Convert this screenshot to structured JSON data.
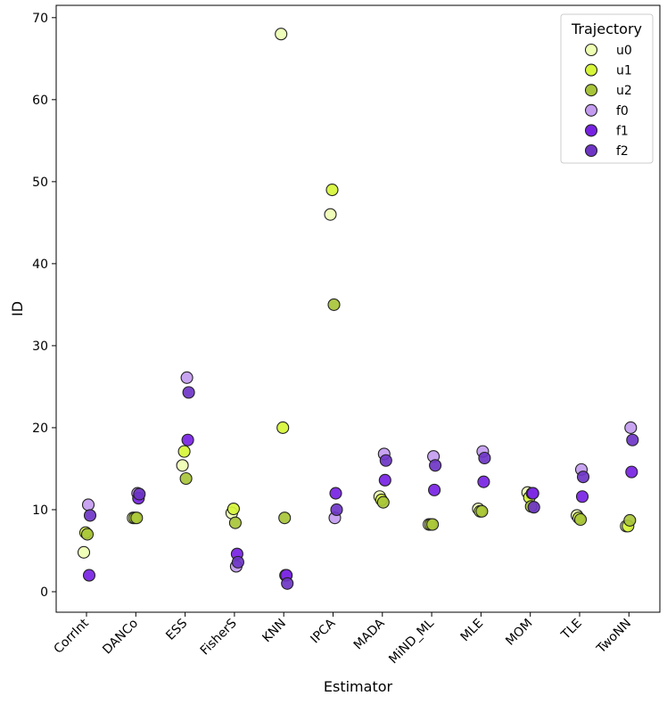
{
  "chart_data": {
    "type": "scatter",
    "xlabel": "Estimator",
    "ylabel": "ID",
    "categories": [
      "CorrInt",
      "DANCo",
      "ESS",
      "FisherS",
      "KNN",
      "IPCA",
      "MADA",
      "MiND_ML",
      "MLE",
      "MOM",
      "TLE",
      "TwoNN"
    ],
    "ylim": [
      -2.5,
      71.5
    ],
    "yticks": [
      0,
      10,
      20,
      30,
      40,
      50,
      60,
      70
    ],
    "grid": false,
    "legend": {
      "title": "Trajectory",
      "placement": "top-right"
    },
    "series": [
      {
        "name": "u0",
        "color": "#eeffb3",
        "points": [
          [
            0,
            4.8
          ],
          [
            1,
            9
          ],
          [
            2,
            15.4
          ],
          [
            3,
            9.6
          ],
          [
            4,
            68
          ],
          [
            5,
            46
          ],
          [
            6,
            11.6
          ],
          [
            7,
            8.2
          ],
          [
            8,
            10.1
          ],
          [
            9,
            12.1
          ],
          [
            10,
            9.3
          ],
          [
            11,
            8
          ]
        ]
      },
      {
        "name": "u1",
        "color": "#d6f53a",
        "points": [
          [
            0,
            7.2
          ],
          [
            1,
            9
          ],
          [
            2,
            17.1
          ],
          [
            3,
            10.1
          ],
          [
            4,
            20
          ],
          [
            5,
            49
          ],
          [
            6,
            11.2
          ],
          [
            7,
            8.2
          ],
          [
            8,
            9.8
          ],
          [
            9,
            11.5
          ],
          [
            10,
            9
          ],
          [
            11,
            8
          ]
        ]
      },
      {
        "name": "u2",
        "color": "#a8c43a",
        "points": [
          [
            0,
            7
          ],
          [
            1,
            9
          ],
          [
            2,
            13.8
          ],
          [
            3,
            8.4
          ],
          [
            4,
            9
          ],
          [
            5,
            35
          ],
          [
            6,
            10.9
          ],
          [
            7,
            8.2
          ],
          [
            8,
            9.8
          ],
          [
            9,
            10.4
          ],
          [
            10,
            8.8
          ],
          [
            11,
            8.7
          ]
        ]
      },
      {
        "name": "f0",
        "color": "#c39cf0",
        "points": [
          [
            0,
            10.6
          ],
          [
            1,
            12
          ],
          [
            2,
            26.1
          ],
          [
            3,
            3.1
          ],
          [
            4,
            2
          ],
          [
            5,
            9
          ],
          [
            6,
            16.8
          ],
          [
            7,
            16.5
          ],
          [
            8,
            17.1
          ],
          [
            9,
            12
          ],
          [
            10,
            14.9
          ],
          [
            11,
            20
          ]
        ]
      },
      {
        "name": "f1",
        "color": "#7722e3",
        "points": [
          [
            0,
            2
          ],
          [
            1,
            11.4
          ],
          [
            2,
            18.5
          ],
          [
            3,
            4.6
          ],
          [
            4,
            2
          ],
          [
            5,
            12
          ],
          [
            6,
            13.6
          ],
          [
            7,
            12.4
          ],
          [
            8,
            13.4
          ],
          [
            9,
            12
          ],
          [
            10,
            11.6
          ],
          [
            11,
            14.6
          ]
        ]
      },
      {
        "name": "f2",
        "color": "#6e35c5",
        "points": [
          [
            0,
            9.3
          ],
          [
            1,
            11.9
          ],
          [
            2,
            24.3
          ],
          [
            3,
            3.6
          ],
          [
            4,
            1
          ],
          [
            5,
            10
          ],
          [
            6,
            16
          ],
          [
            7,
            15.4
          ],
          [
            8,
            16.3
          ],
          [
            9,
            10.3
          ],
          [
            10,
            14
          ],
          [
            11,
            18.5
          ]
        ]
      }
    ]
  }
}
